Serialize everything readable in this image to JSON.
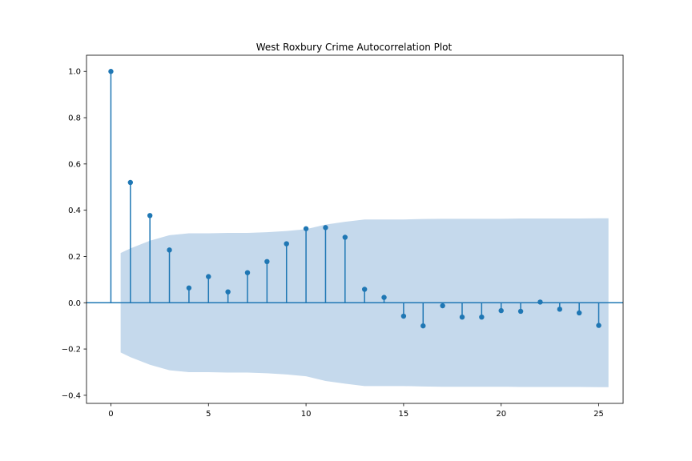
{
  "chart_data": {
    "type": "stem",
    "title": "West Roxbury Crime Autocorrelation Plot",
    "xlabel": "",
    "ylabel": "",
    "xlim": [
      -1.25,
      26.25
    ],
    "ylim": [
      -0.435,
      1.07
    ],
    "x_ticks": [
      0,
      5,
      10,
      15,
      20,
      25
    ],
    "y_ticks": [
      -0.4,
      -0.2,
      0.0,
      0.2,
      0.4,
      0.6,
      0.8,
      1.0
    ],
    "y_tick_labels": [
      "−0.4",
      "−0.2",
      "0.0",
      "0.2",
      "0.4",
      "0.6",
      "0.8",
      "1.0"
    ],
    "lags": [
      0,
      1,
      2,
      3,
      4,
      5,
      6,
      7,
      8,
      9,
      10,
      11,
      12,
      13,
      14,
      15,
      16,
      17,
      18,
      19,
      20,
      21,
      22,
      23,
      24,
      25
    ],
    "acf": [
      1.0,
      0.52,
      0.377,
      0.228,
      0.064,
      0.113,
      0.047,
      0.13,
      0.178,
      0.255,
      0.32,
      0.325,
      0.283,
      0.058,
      0.023,
      -0.058,
      -0.1,
      -0.013,
      -0.062,
      -0.062,
      -0.034,
      -0.037,
      0.003,
      -0.028,
      -0.044,
      -0.098
    ],
    "confidence_band": {
      "x": [
        0.5,
        1,
        2,
        3,
        4,
        5,
        6,
        7,
        8,
        9,
        10,
        11,
        12,
        13,
        14,
        15,
        16,
        17,
        18,
        19,
        20,
        21,
        22,
        23,
        24,
        25,
        25.5
      ],
      "upper": [
        0.215,
        0.235,
        0.268,
        0.292,
        0.3,
        0.3,
        0.302,
        0.302,
        0.305,
        0.31,
        0.318,
        0.338,
        0.35,
        0.36,
        0.36,
        0.36,
        0.362,
        0.363,
        0.363,
        0.363,
        0.363,
        0.364,
        0.364,
        0.364,
        0.364,
        0.365,
        0.365
      ]
    },
    "grid": false,
    "legend": "none",
    "colors": {
      "stem": "#1f77b4",
      "band": "#c5d9ec",
      "axis": "#000000",
      "background": "#ffffff"
    }
  }
}
